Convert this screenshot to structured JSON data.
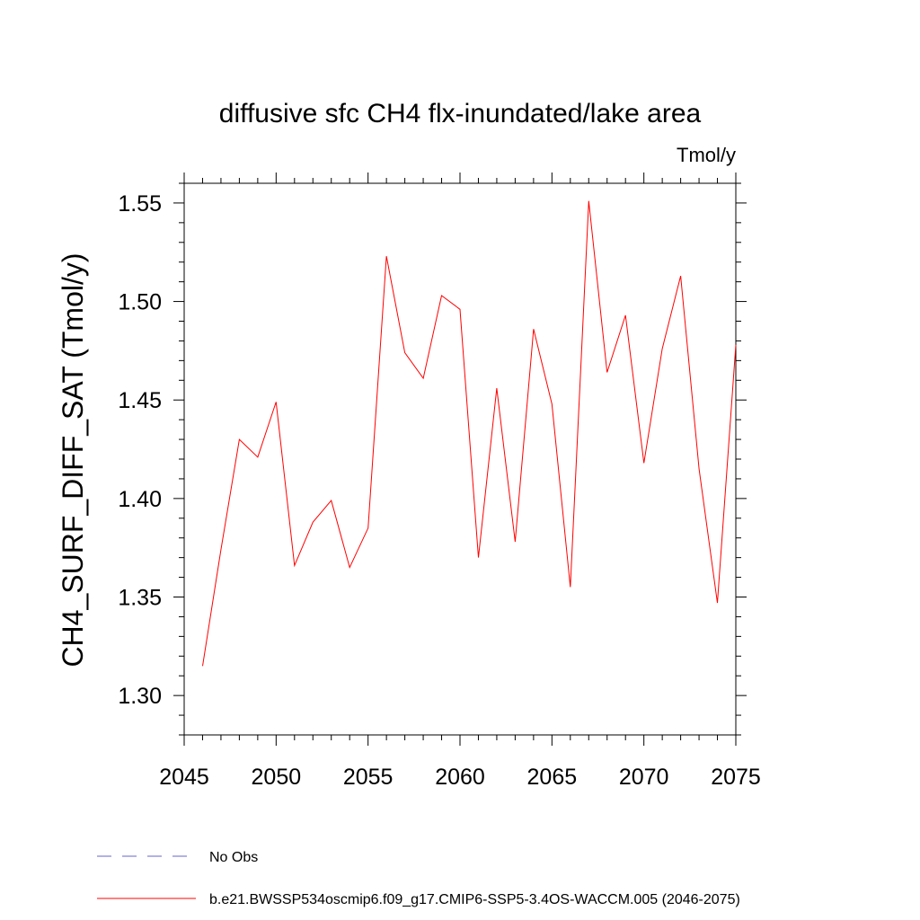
{
  "chart_data": {
    "type": "line",
    "title": "diffusive sfc CH4 flx-inundated/lake area",
    "units_label": "Tmol/y",
    "ylabel": "CH4_SURF_DIFF_SAT  (Tmol/y)",
    "xlabel": "",
    "xlim": [
      2045,
      2075
    ],
    "ylim": [
      1.28,
      1.56
    ],
    "x_ticks": [
      2045,
      2050,
      2055,
      2060,
      2065,
      2070,
      2075
    ],
    "y_ticks": [
      1.3,
      1.35,
      1.4,
      1.45,
      1.5,
      1.55
    ],
    "x_tick_labels": [
      "2045",
      "2050",
      "2055",
      "2060",
      "2065",
      "2070",
      "2075"
    ],
    "y_tick_labels": [
      "1.30",
      "1.35",
      "1.40",
      "1.45",
      "1.50",
      "1.55"
    ],
    "grid": false,
    "series": [
      {
        "name": "b.e21.BWSSP534oscmip6.f09_g17.CMIP6-SSP5-3.4OS-WACCM.005 (2046-2075)",
        "color": "#ff0000",
        "x": [
          2046,
          2047,
          2048,
          2049,
          2050,
          2051,
          2052,
          2053,
          2054,
          2055,
          2056,
          2057,
          2058,
          2059,
          2060,
          2061,
          2062,
          2063,
          2064,
          2065,
          2066,
          2067,
          2068,
          2069,
          2070,
          2071,
          2072,
          2073,
          2074,
          2075
        ],
        "values": [
          1.315,
          1.374,
          1.43,
          1.421,
          1.449,
          1.366,
          1.388,
          1.399,
          1.365,
          1.385,
          1.523,
          1.474,
          1.461,
          1.503,
          1.496,
          1.37,
          1.456,
          1.378,
          1.486,
          1.448,
          1.355,
          1.551,
          1.464,
          1.493,
          1.418,
          1.476,
          1.513,
          1.415,
          1.347,
          1.478
        ]
      }
    ],
    "legend": [
      {
        "label": "No Obs",
        "style": "dashed",
        "color": "#6666cc"
      },
      {
        "label": "b.e21.BWSSP534oscmip6.f09_g17.CMIP6-SSP5-3.4OS-WACCM.005 (2046-2075)",
        "style": "solid",
        "color": "#ff0000"
      }
    ]
  }
}
